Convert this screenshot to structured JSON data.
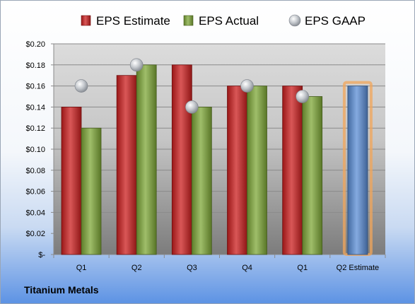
{
  "company": "Titanium Metals",
  "chart_data": {
    "type": "bar",
    "categories": [
      "Q1",
      "Q2",
      "Q3",
      "Q4",
      "Q1",
      "Q2 Estimate"
    ],
    "series": [
      {
        "name": "EPS Estimate",
        "kind": "bar",
        "color": "#cc1f1f",
        "values": [
          0.14,
          0.17,
          0.18,
          0.16,
          0.16,
          null
        ]
      },
      {
        "name": "EPS Actual",
        "kind": "bar",
        "color": "#7fa838",
        "values": [
          0.12,
          0.18,
          0.14,
          0.16,
          0.15,
          null
        ]
      },
      {
        "name": "EPS GAAP",
        "kind": "marker",
        "color": "#b9bdc3",
        "values": [
          0.16,
          0.18,
          0.14,
          0.16,
          0.15,
          null
        ]
      },
      {
        "name": "",
        "kind": "highlight-bar",
        "color": "#5b8ed6",
        "glow": "#f2a55a",
        "values": [
          null,
          null,
          null,
          null,
          null,
          0.16
        ]
      }
    ],
    "yticks": [
      "$0.20",
      "$0.18",
      "$0.16",
      "$0.14",
      "$0.12",
      "$0.10",
      "$0.08",
      "$0.06",
      "$0.04",
      "$0.02",
      "$-"
    ],
    "ylim": [
      0,
      0.2
    ],
    "grid": true,
    "legend": "top",
    "plot_background": [
      "#dcdcdc",
      "#7c7c7c"
    ]
  }
}
